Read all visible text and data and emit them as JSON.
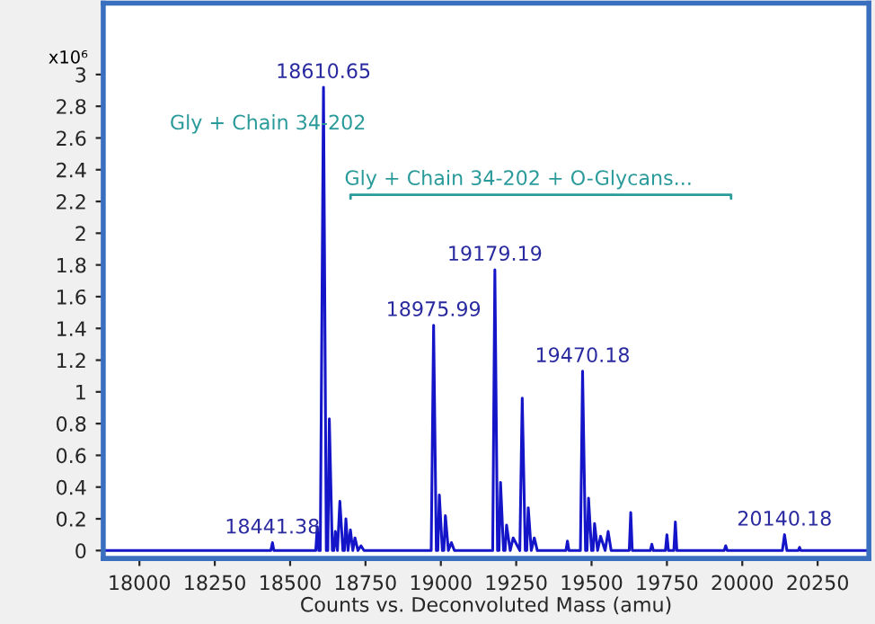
{
  "chart_data": {
    "type": "line",
    "xlabel": "Counts vs. Deconvoluted Mass (amu)",
    "xlim": [
      17880,
      20420
    ],
    "xticks": [
      18000,
      18250,
      18500,
      18750,
      19000,
      19250,
      19500,
      19750,
      20000,
      20250
    ],
    "ylim": [
      -0.05,
      3.45
    ],
    "yticks": [
      0,
      0.2,
      0.4,
      0.6,
      0.8,
      1,
      1.2,
      1.4,
      1.6,
      1.8,
      2,
      2.2,
      2.4,
      2.6,
      2.8,
      3
    ],
    "grid": false,
    "legend": false,
    "marker": "none",
    "line_style": "solid",
    "series": [
      {
        "color": "#1414c8",
        "x": [
          17880,
          18436,
          18441.38,
          18446,
          18585,
          18590,
          18595,
          18600,
          18610.65,
          18620,
          18625,
          18630,
          18640,
          18645,
          18650,
          18657,
          18665,
          18675,
          18680,
          18685,
          18692,
          18700,
          18708,
          18715,
          18725,
          18735,
          18745,
          18968,
          18975.99,
          18985,
          18990,
          18995,
          19005,
          19010,
          19015,
          19025,
          19035,
          19045,
          19172,
          19179.19,
          19188,
          19193,
          19198,
          19208,
          19213,
          19218,
          19230,
          19240,
          19262,
          19270,
          19280,
          19285,
          19290,
          19300,
          19310,
          19320,
          19415,
          19420,
          19425,
          19463,
          19470.18,
          19480,
          19485,
          19490,
          19500,
          19505,
          19510,
          19520,
          19530,
          19545,
          19555,
          19565,
          19625,
          19630,
          19635,
          19695,
          19700,
          19705,
          19745,
          19750,
          19755,
          19773,
          19778,
          19783,
          19940,
          19945,
          19950,
          20133,
          20140.18,
          20148,
          20186,
          20190,
          20194,
          20420
        ],
        "values": [
          0,
          0,
          0.05,
          0,
          0,
          0.15,
          0,
          0,
          2.92,
          0,
          0,
          0.83,
          0,
          0,
          0.12,
          0,
          0.31,
          0,
          0,
          0.2,
          0,
          0.13,
          0,
          0.08,
          0,
          0.03,
          0,
          0,
          1.42,
          0,
          0,
          0.35,
          0,
          0,
          0.22,
          0,
          0.05,
          0,
          0,
          1.77,
          0,
          0,
          0.43,
          0,
          0,
          0.16,
          0,
          0.08,
          0,
          0.96,
          0,
          0,
          0.27,
          0,
          0.08,
          0,
          0,
          0.06,
          0,
          0,
          1.13,
          0,
          0,
          0.33,
          0,
          0,
          0.17,
          0,
          0.09,
          0,
          0.12,
          0,
          0,
          0.24,
          0,
          0,
          0.04,
          0,
          0,
          0.1,
          0,
          0,
          0.18,
          0,
          0,
          0.03,
          0,
          0,
          0.1,
          0,
          0,
          0.02,
          0,
          0
        ]
      }
    ],
    "annotations": [
      "x10⁶",
      {
        "text": "18610.65",
        "x": 18610.65,
        "y": 2.92
      },
      {
        "text": "18441.38",
        "x": 18441.38,
        "y": 0.05
      },
      {
        "text": "18975.99",
        "x": 18975.99,
        "y": 1.42
      },
      {
        "text": "19179.19",
        "x": 19179.19,
        "y": 1.77
      },
      {
        "text": "19470.18",
        "x": 19470.18,
        "y": 1.13
      },
      {
        "text": "20140.18",
        "x": 20140.18,
        "y": 0.1
      },
      "Gly + Chain 34-202",
      "Gly + Chain 34-202 + O-Glycans..."
    ]
  }
}
